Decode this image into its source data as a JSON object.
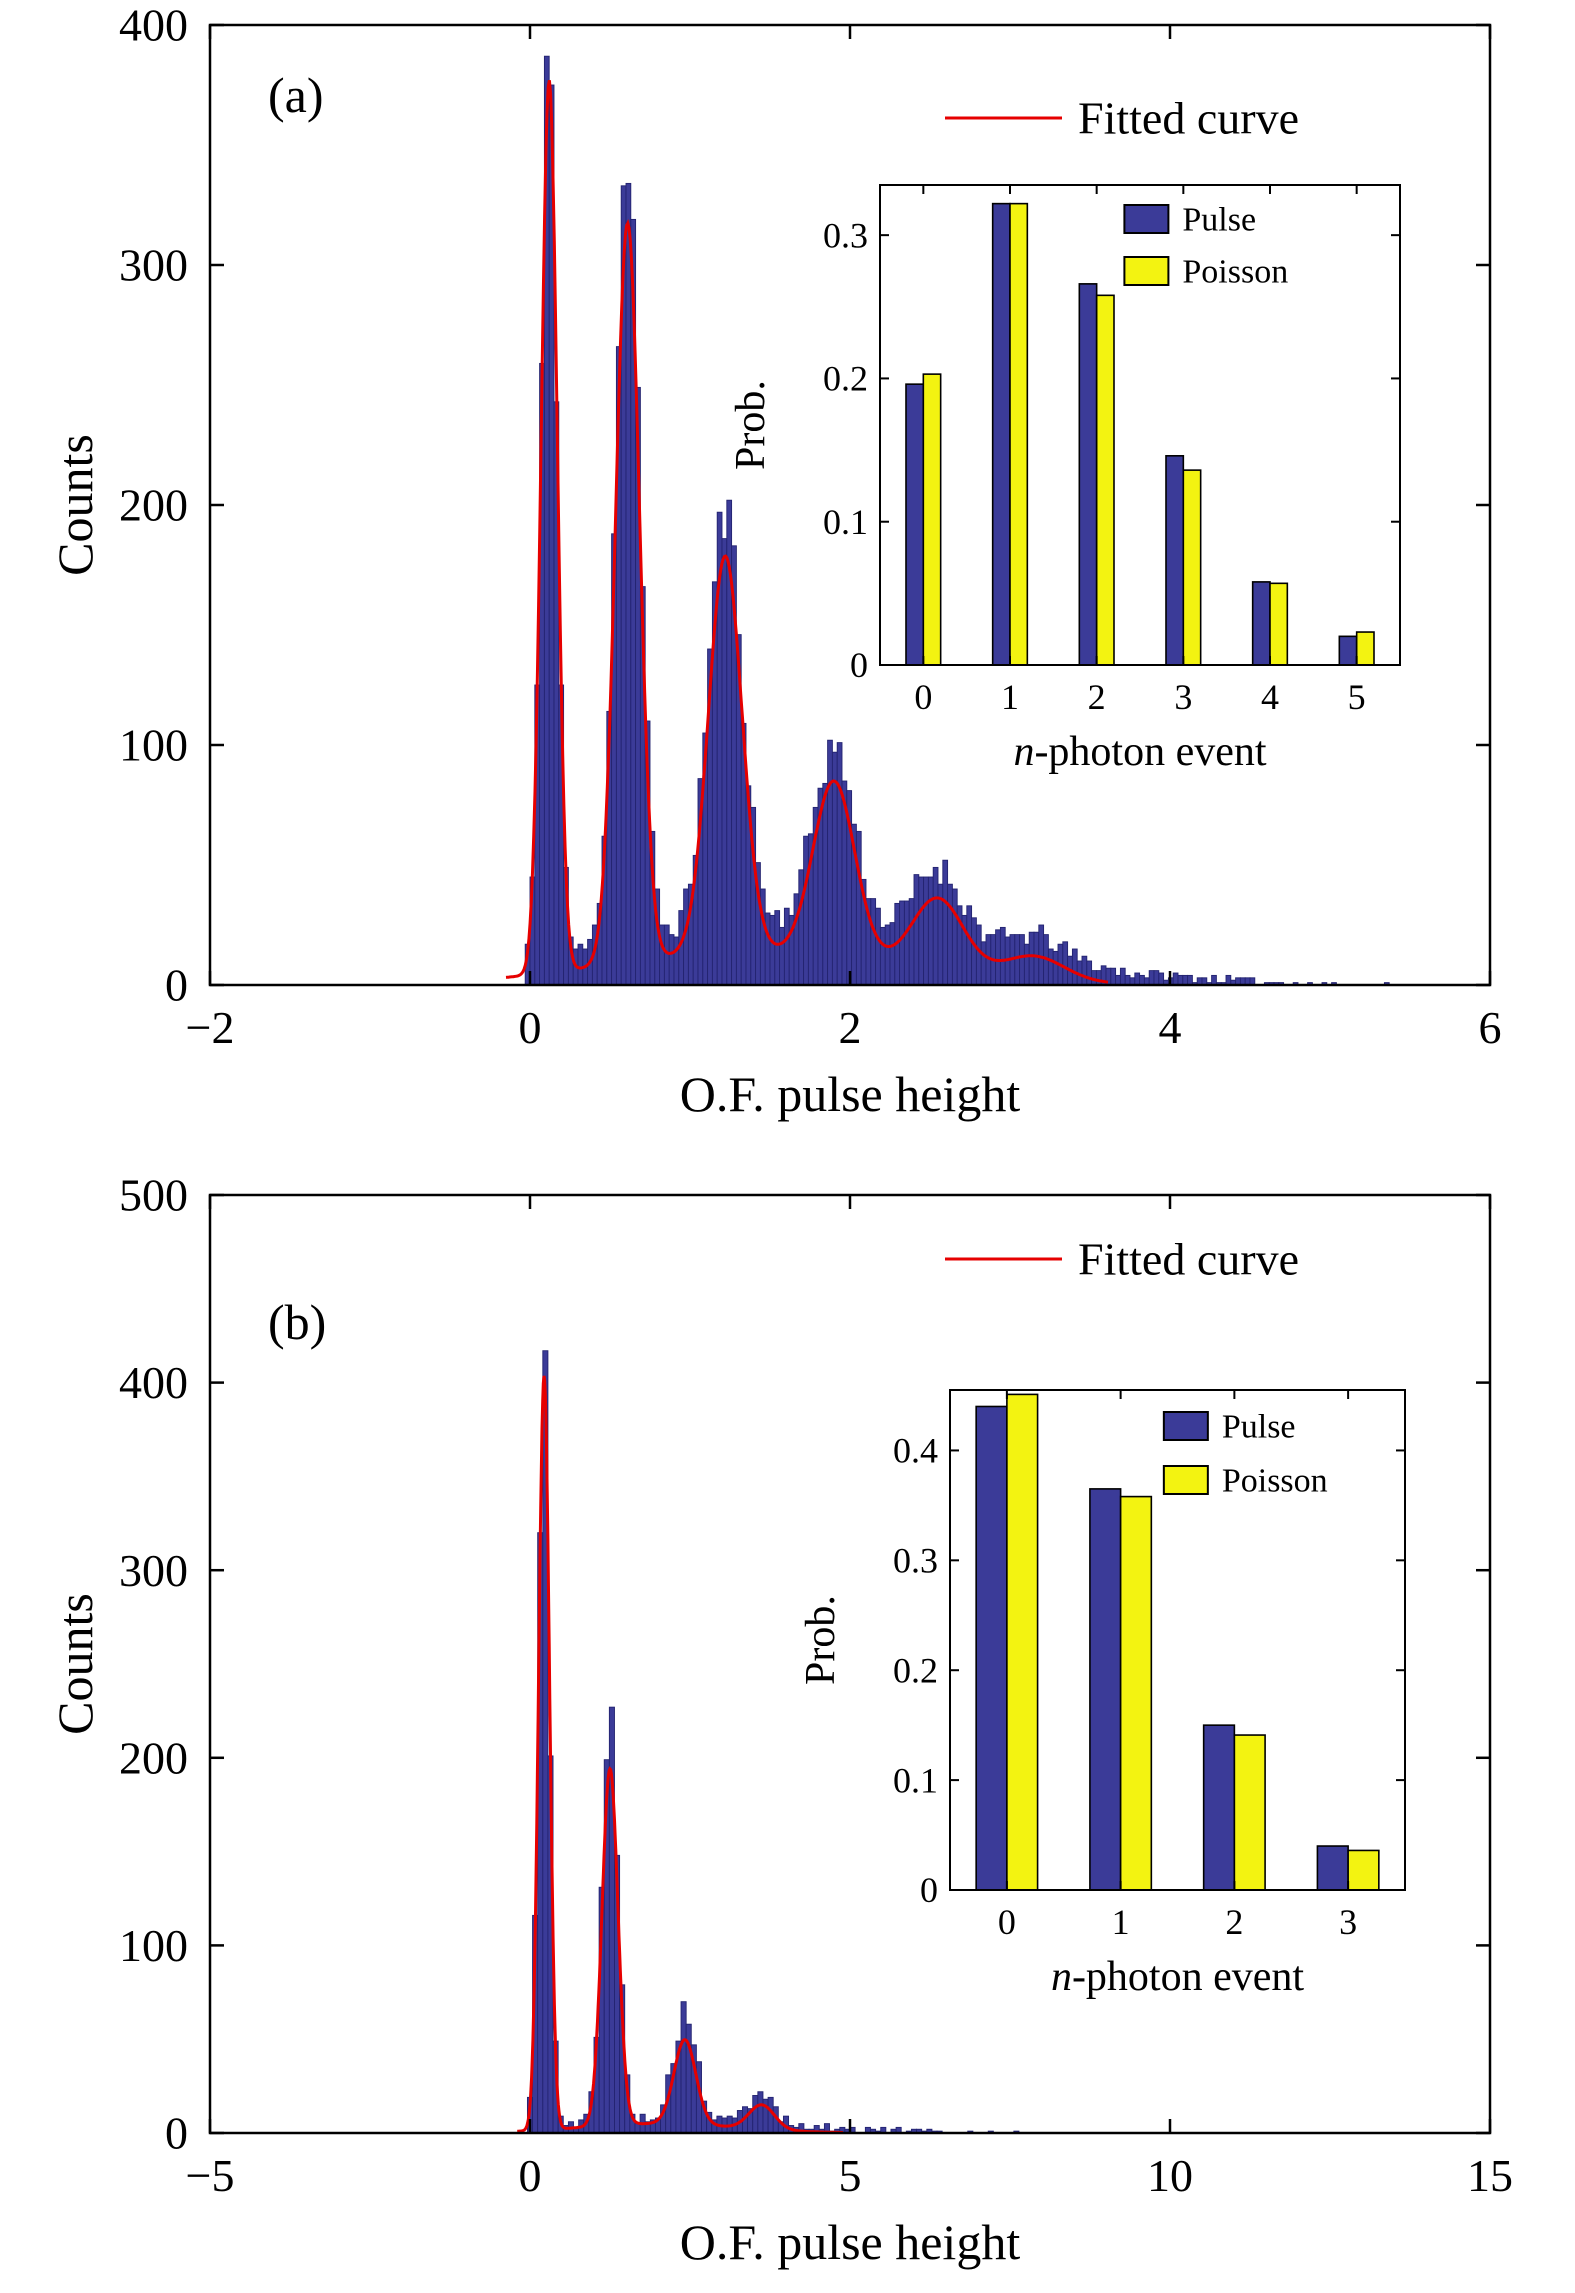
{
  "chart_data": [
    {
      "id": "a",
      "type": "histogram",
      "panel_label": "(a)",
      "xlabel": "O.F. pulse height",
      "ylabel": "Counts",
      "xlim": [
        -2,
        6
      ],
      "ylim": [
        0,
        400
      ],
      "xticks": [
        -2,
        0,
        2,
        4,
        6
      ],
      "yticks": [
        0,
        100,
        200,
        300,
        400
      ],
      "legend": {
        "label": "Fitted curve"
      },
      "colors": {
        "hist_fill": "#3b3b98",
        "hist_edge": "#232370",
        "fit": "#e60000"
      },
      "hist": {
        "bin_width": 0.03,
        "x_start": -0.03,
        "x_end": 5.45,
        "seed": 11,
        "noise": 1.0,
        "peaks": [
          [
            0.12,
            380,
            0.048
          ],
          [
            0.61,
            330,
            0.075
          ],
          [
            1.22,
            172,
            0.105
          ],
          [
            1.9,
            76,
            0.13
          ],
          [
            2.55,
            33,
            0.16
          ],
          [
            3.15,
            11,
            0.19
          ]
        ],
        "bg_peaks": [
          [
            1.3,
            24,
            1.0
          ],
          [
            3.0,
            6,
            1.0
          ]
        ]
      },
      "fit": {
        "x_start": -0.15,
        "x_end": 3.62,
        "peaks": [
          [
            0.12,
            372,
            0.05
          ],
          [
            0.61,
            308,
            0.075
          ],
          [
            1.22,
            165,
            0.105
          ],
          [
            1.9,
            73,
            0.13
          ],
          [
            2.55,
            30,
            0.16
          ],
          [
            3.15,
            10,
            0.19
          ]
        ],
        "bg_peaks": [
          [
            1.4,
            14,
            0.9
          ]
        ]
      },
      "inset": {
        "type": "bar",
        "categories": [
          "0",
          "1",
          "2",
          "3",
          "4",
          "5"
        ],
        "series": [
          {
            "name": "Pulse",
            "color": "#3b3b98",
            "values": [
              0.196,
              0.322,
              0.266,
              0.146,
              0.058,
              0.02
            ]
          },
          {
            "name": "Poisson",
            "color": "#f3f311",
            "values": [
              0.203,
              0.322,
              0.258,
              0.136,
              0.057,
              0.023
            ]
          }
        ],
        "xlabel": "n-photon event",
        "ylabel": "Prob.",
        "ylim": [
          0,
          0.335
        ],
        "yticks": [
          0,
          0.1,
          0.2,
          0.3
        ]
      }
    },
    {
      "id": "b",
      "type": "histogram",
      "panel_label": "(b)",
      "xlabel": "O.F. pulse height",
      "ylabel": "Counts",
      "xlim": [
        -5,
        15
      ],
      "ylim": [
        0,
        500
      ],
      "xticks": [
        -5,
        0,
        5,
        10,
        15
      ],
      "yticks": [
        0,
        100,
        200,
        300,
        400,
        500
      ],
      "legend": {
        "label": "Fitted curve"
      },
      "colors": {
        "hist_fill": "#3b3b98",
        "hist_edge": "#232370",
        "fit": "#e60000"
      },
      "hist": {
        "bin_width": 0.08,
        "x_start": -0.04,
        "x_end": 7.6,
        "seed": 5,
        "noise": 1.0,
        "peaks": [
          [
            0.22,
            420,
            0.085
          ],
          [
            1.25,
            215,
            0.125
          ],
          [
            2.42,
            57,
            0.17
          ],
          [
            3.62,
            16,
            0.2
          ]
        ],
        "bg_peaks": [
          [
            1.9,
            8,
            1.3
          ],
          [
            4.5,
            2.5,
            1.5
          ]
        ]
      },
      "fit": {
        "x_start": -0.2,
        "x_end": 4.9,
        "peaks": [
          [
            0.22,
            402,
            0.085
          ],
          [
            1.25,
            190,
            0.125
          ],
          [
            2.42,
            45,
            0.17
          ],
          [
            3.62,
            13,
            0.2
          ]
        ],
        "bg_peaks": [
          [
            2.0,
            5,
            1.2
          ]
        ]
      },
      "inset": {
        "type": "bar",
        "categories": [
          "0",
          "1",
          "2",
          "3"
        ],
        "series": [
          {
            "name": "Pulse",
            "color": "#3b3b98",
            "values": [
              0.44,
              0.365,
              0.15,
              0.04
            ]
          },
          {
            "name": "Poisson",
            "color": "#f3f311",
            "values": [
              0.451,
              0.358,
              0.141,
              0.036
            ]
          }
        ],
        "xlabel": "n-photon event",
        "ylabel": "Prob.",
        "ylim": [
          0,
          0.455
        ],
        "yticks": [
          0,
          0.1,
          0.2,
          0.3,
          0.4
        ]
      }
    }
  ]
}
